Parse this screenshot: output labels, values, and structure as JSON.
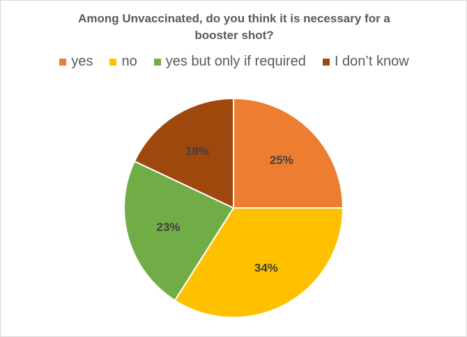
{
  "chart_data": {
    "type": "pie",
    "title": "Among Unvaccinated, do you think it is necessary for a booster shot?",
    "title_lines": [
      "Among Unvaccinated, do you think it is necessary for a",
      "booster shot?"
    ],
    "categories": [
      "yes",
      "no",
      "yes but only if required",
      "I don’t know"
    ],
    "values": [
      25,
      34,
      23,
      18
    ],
    "data_labels": [
      "25%",
      "34%",
      "23%",
      "18%"
    ],
    "colors": [
      "#ED7D31",
      "#FFC000",
      "#70AD47",
      "#9E480E"
    ],
    "legend_position": "top",
    "start_angle": "12 o'clock",
    "direction": "clockwise"
  }
}
